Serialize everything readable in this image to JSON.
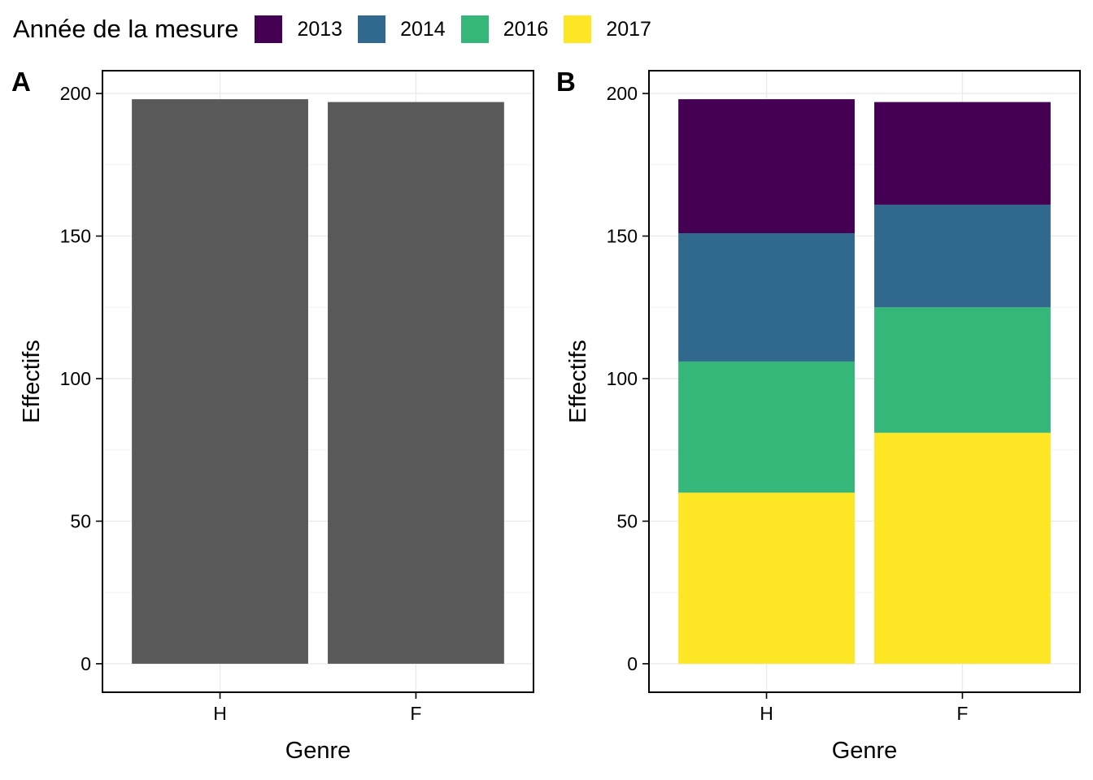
{
  "legend": {
    "title": "Année de la mesure",
    "items": [
      {
        "label": "2013",
        "color": "#440154"
      },
      {
        "label": "2014",
        "color": "#31688E"
      },
      {
        "label": "2016",
        "color": "#35B779"
      },
      {
        "label": "2017",
        "color": "#FDE725"
      }
    ]
  },
  "chart_data": [
    {
      "type": "bar",
      "panel_label": "A",
      "categories": [
        "H",
        "F"
      ],
      "values": [
        198,
        197
      ],
      "bar_color": "#595959",
      "xlabel": "Genre",
      "ylabel": "Effectifs",
      "ylim": [
        -10,
        208
      ],
      "yticks": [
        0,
        50,
        100,
        150,
        200
      ],
      "grid": true,
      "legend": "none"
    },
    {
      "type": "bar",
      "stacked": true,
      "panel_label": "B",
      "categories": [
        "H",
        "F"
      ],
      "series": [
        {
          "name": "2017",
          "color": "#FDE725",
          "values": [
            60,
            81
          ]
        },
        {
          "name": "2016",
          "color": "#35B779",
          "values": [
            46,
            44
          ]
        },
        {
          "name": "2014",
          "color": "#31688E",
          "values": [
            45,
            36
          ]
        },
        {
          "name": "2013",
          "color": "#440154",
          "values": [
            47,
            36
          ]
        }
      ],
      "xlabel": "Genre",
      "ylabel": "Effectifs",
      "ylim": [
        -10,
        208
      ],
      "yticks": [
        0,
        50,
        100,
        150,
        200
      ],
      "grid": true,
      "legend": "top"
    }
  ]
}
